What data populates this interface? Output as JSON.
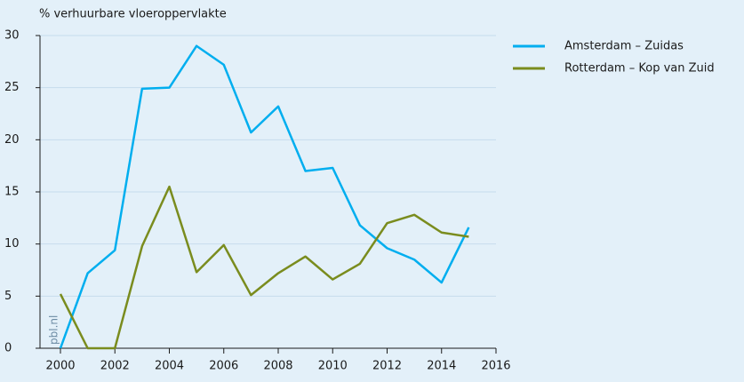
{
  "chart_data": {
    "type": "line",
    "y_label": "% verhuurbare vloeroppervlakte",
    "watermark": "pbl.nl",
    "x": [
      2000,
      2001,
      2002,
      2003,
      2004,
      2005,
      2006,
      2007,
      2008,
      2009,
      2010,
      2011,
      2012,
      2013,
      2014,
      2015
    ],
    "series": [
      {
        "name": "Amsterdam – Zuidas",
        "color": "#00aeef",
        "values": [
          0,
          7.2,
          9.4,
          24.9,
          25.0,
          29.0,
          27.2,
          20.7,
          23.2,
          17.0,
          17.3,
          11.8,
          9.6,
          8.5,
          6.3,
          11.6
        ]
      },
      {
        "name": "Rotterdam – Kop van Zuid",
        "color": "#7a8c1e",
        "values": [
          5.2,
          0,
          0,
          9.8,
          15.5,
          7.3,
          9.9,
          5.1,
          7.2,
          8.8,
          6.6,
          8.1,
          12.0,
          12.8,
          11.1,
          10.7
        ]
      }
    ],
    "xlim": [
      2000,
      2016
    ],
    "xticks": [
      2000,
      2002,
      2004,
      2006,
      2008,
      2010,
      2012,
      2014,
      2016
    ],
    "ylim": [
      0,
      30
    ],
    "yticks": [
      0,
      5,
      10,
      15,
      20,
      25,
      30
    ],
    "grid": true,
    "legend": "right"
  }
}
